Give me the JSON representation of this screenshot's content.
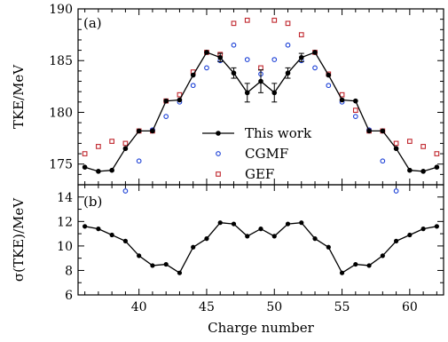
{
  "chart_data": [
    {
      "type": "line",
      "panel_label": "(a)",
      "ylabel": "TKE/MeV",
      "ylim": [
        173,
        190
      ],
      "xlim": [
        35.5,
        62.5
      ],
      "yticks": [
        175,
        180,
        185,
        190
      ],
      "legend": {
        "placement": "center"
      },
      "series": [
        {
          "name": "This work",
          "style": "line-with-filled-circles-and-error-bars",
          "color": "#000000",
          "x": [
            36,
            37,
            38,
            39,
            40,
            41,
            42,
            43,
            44,
            45,
            46,
            47,
            48,
            49,
            50,
            51,
            52,
            53,
            54,
            55,
            56,
            57,
            58,
            59,
            60,
            61,
            62
          ],
          "y": [
            174.7,
            174.3,
            174.4,
            176.5,
            178.2,
            178.2,
            181.1,
            181.2,
            183.6,
            185.8,
            185.3,
            183.8,
            181.9,
            183.0,
            181.9,
            183.8,
            185.3,
            185.8,
            183.6,
            181.2,
            181.1,
            178.2,
            178.2,
            176.5,
            174.4,
            174.3,
            174.7
          ],
          "yerr": [
            0.3,
            0.2,
            0.2,
            0.3,
            0.2,
            0.2,
            0.3,
            0.3,
            0.3,
            0.3,
            0.4,
            0.5,
            0.9,
            1.1,
            0.9,
            0.5,
            0.4,
            0.3,
            0.3,
            0.3,
            0.3,
            0.2,
            0.2,
            0.3,
            0.2,
            0.2,
            0.3
          ]
        },
        {
          "name": "CGMF",
          "style": "open-circles",
          "color": "#1a3fd6",
          "x": [
            39,
            40,
            41,
            42,
            43,
            44,
            45,
            46,
            47,
            48,
            49,
            50,
            51,
            52,
            53,
            54,
            55,
            56,
            57,
            58,
            59
          ],
          "y": [
            172.4,
            175.3,
            178.3,
            179.6,
            181.0,
            182.6,
            184.3,
            185.0,
            186.5,
            185.1,
            183.7,
            185.1,
            186.5,
            185.0,
            184.3,
            182.6,
            181.0,
            179.6,
            178.3,
            175.3,
            172.4
          ]
        },
        {
          "name": "GEF",
          "style": "open-squares",
          "color": "#c0262d",
          "x": [
            36,
            37,
            38,
            39,
            40,
            41,
            42,
            43,
            44,
            45,
            46,
            47,
            48,
            49,
            50,
            51,
            52,
            53,
            54,
            55,
            56,
            57,
            58,
            59,
            60,
            61,
            62
          ],
          "y": [
            176.0,
            176.7,
            177.2,
            177.0,
            178.2,
            178.2,
            181.1,
            181.7,
            183.9,
            185.8,
            185.6,
            188.6,
            188.9,
            184.3,
            188.9,
            188.6,
            187.5,
            185.8,
            183.7,
            181.7,
            180.2,
            178.2,
            178.2,
            177.0,
            177.2,
            176.7,
            176.0
          ]
        }
      ]
    },
    {
      "type": "line",
      "panel_label": "(b)",
      "ylabel": "σ(TKE)/MeV",
      "xlabel": "Charge number",
      "ylim": [
        6,
        15
      ],
      "xlim": [
        35.5,
        62.5
      ],
      "yticks": [
        6,
        8,
        10,
        12,
        14
      ],
      "xticks": [
        40,
        45,
        50,
        55,
        60
      ],
      "series": [
        {
          "style": "line-with-filled-circles",
          "color": "#000000",
          "x": [
            36,
            37,
            38,
            39,
            40,
            41,
            42,
            43,
            44,
            45,
            46,
            47,
            48,
            49,
            50,
            51,
            52,
            53,
            54,
            55,
            56,
            57,
            58,
            59,
            60,
            61,
            62
          ],
          "y": [
            11.6,
            11.4,
            10.9,
            10.4,
            9.2,
            8.4,
            8.5,
            7.8,
            9.9,
            10.6,
            11.9,
            11.8,
            10.8,
            11.4,
            10.8,
            11.8,
            11.9,
            10.6,
            9.9,
            7.8,
            8.5,
            8.4,
            9.2,
            10.4,
            10.9,
            11.4,
            11.6
          ]
        }
      ]
    }
  ]
}
